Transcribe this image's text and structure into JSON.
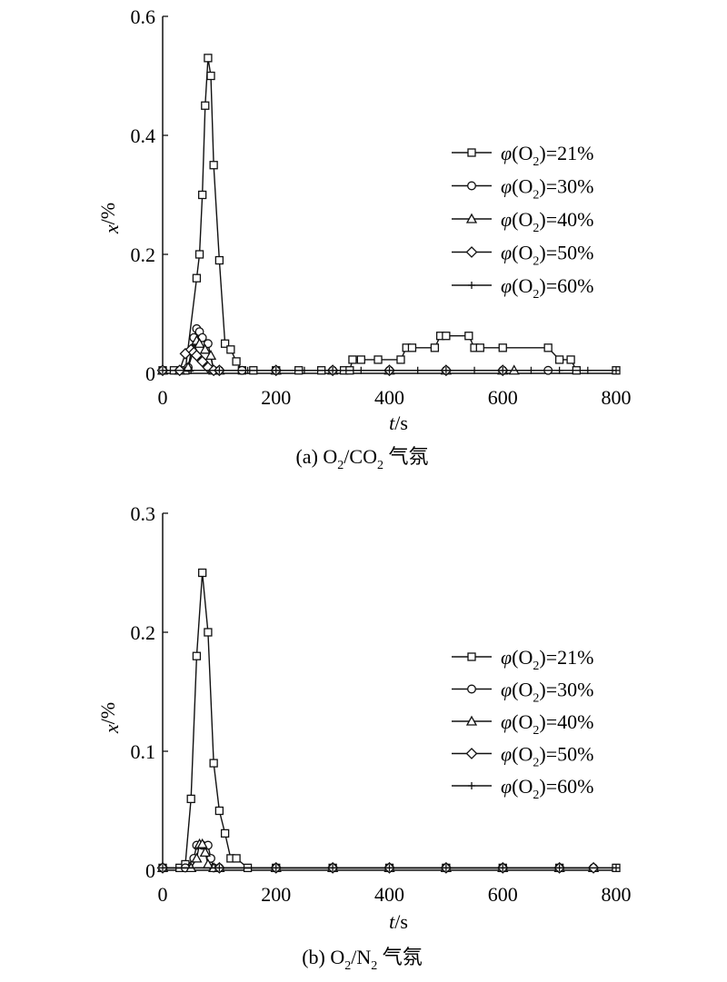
{
  "figure": {
    "panels": [
      {
        "caption_prefix": "(a) O",
        "caption_sub1": "2",
        "caption_mid": "/CO",
        "caption_sub2": "2",
        "caption_suffix": " 气氛"
      },
      {
        "caption_prefix": "(b) O",
        "caption_sub1": "2",
        "caption_mid": "/N",
        "caption_sub2": "2",
        "caption_suffix": " 气氛"
      }
    ]
  },
  "chart_data": [
    {
      "type": "line",
      "xlabel_italic": "t",
      "xlabel_rest": "/s",
      "ylabel_italic": "x",
      "ylabel_rest": "/%",
      "xlim": [
        0,
        800
      ],
      "ylim": [
        0,
        0.6
      ],
      "xticks": [
        "0",
        "200",
        "400",
        "600",
        "800"
      ],
      "yticks": [
        "0",
        "0.2",
        "0.4",
        "0.6"
      ],
      "legend_position": "right",
      "series": [
        {
          "name": "φ(O2)=21%",
          "legend_pre": "φ(O",
          "legend_sub": "2",
          "legend_post": ")=21%",
          "marker": "square",
          "x": [
            0,
            20,
            40,
            60,
            65,
            70,
            75,
            80,
            85,
            90,
            100,
            110,
            120,
            130,
            140,
            160,
            200,
            240,
            280,
            320,
            330,
            335,
            350,
            380,
            420,
            430,
            440,
            480,
            490,
            500,
            540,
            550,
            560,
            600,
            680,
            700,
            720,
            730,
            800
          ],
          "y": [
            0.005,
            0.005,
            0.005,
            0.16,
            0.2,
            0.3,
            0.45,
            0.53,
            0.5,
            0.35,
            0.19,
            0.05,
            0.04,
            0.02,
            0.005,
            0.005,
            0.005,
            0.005,
            0.005,
            0.005,
            0.005,
            0.023,
            0.023,
            0.023,
            0.023,
            0.043,
            0.043,
            0.043,
            0.063,
            0.063,
            0.063,
            0.043,
            0.043,
            0.043,
            0.043,
            0.023,
            0.023,
            0.005,
            0.005
          ]
        },
        {
          "name": "φ(O2)=30%",
          "legend_pre": "φ(O",
          "legend_sub": "2",
          "legend_post": ")=30%",
          "marker": "circle",
          "x": [
            0,
            30,
            45,
            55,
            60,
            65,
            70,
            80,
            90,
            100,
            140,
            200,
            300,
            400,
            500,
            600,
            680
          ],
          "y": [
            0.005,
            0.005,
            0.01,
            0.06,
            0.075,
            0.07,
            0.06,
            0.05,
            0.005,
            0.005,
            0.005,
            0.005,
            0.005,
            0.005,
            0.005,
            0.005,
            0.005
          ]
        },
        {
          "name": "φ(O2)=40%",
          "legend_pre": "φ(O",
          "legend_sub": "2",
          "legend_post": ")=40%",
          "marker": "triangle",
          "x": [
            0,
            30,
            45,
            55,
            60,
            65,
            75,
            85,
            90,
            100,
            200,
            300,
            400,
            500,
            600,
            620
          ],
          "y": [
            0.005,
            0.005,
            0.01,
            0.04,
            0.055,
            0.05,
            0.04,
            0.03,
            0.005,
            0.005,
            0.005,
            0.005,
            0.005,
            0.005,
            0.005,
            0.005
          ]
        },
        {
          "name": "φ(O2)=50%",
          "legend_pre": "φ(O",
          "legend_sub": "2",
          "legend_post": ")=50%",
          "marker": "diamond",
          "x": [
            0,
            30,
            40,
            50,
            55,
            60,
            70,
            80,
            90,
            100,
            200,
            300,
            400,
            500,
            600
          ],
          "y": [
            0.005,
            0.005,
            0.033,
            0.04,
            0.035,
            0.03,
            0.02,
            0.01,
            0.005,
            0.005,
            0.005,
            0.005,
            0.005,
            0.005,
            0.005
          ]
        },
        {
          "name": "φ(O2)=60%",
          "legend_pre": "φ(O",
          "legend_sub": "2",
          "legend_post": ")=60%",
          "marker": "plus",
          "x": [
            0,
            50,
            100,
            150,
            200,
            250,
            300,
            350,
            400,
            450,
            500,
            550,
            600,
            650,
            700,
            750,
            800
          ],
          "y": [
            0.005,
            0.005,
            0.005,
            0.005,
            0.005,
            0.005,
            0.005,
            0.005,
            0.005,
            0.005,
            0.005,
            0.005,
            0.005,
            0.005,
            0.005,
            0.005,
            0.005
          ]
        }
      ]
    },
    {
      "type": "line",
      "xlabel_italic": "t",
      "xlabel_rest": "/s",
      "ylabel_italic": "x",
      "ylabel_rest": "/%",
      "xlim": [
        0,
        800
      ],
      "ylim": [
        0,
        0.3
      ],
      "xticks": [
        "0",
        "200",
        "400",
        "600",
        "800"
      ],
      "yticks": [
        "0",
        "0.1",
        "0.2",
        "0.3"
      ],
      "legend_position": "right",
      "series": [
        {
          "name": "φ(O2)=21%",
          "legend_pre": "φ(O",
          "legend_sub": "2",
          "legend_post": ")=21%",
          "marker": "square",
          "x": [
            0,
            30,
            40,
            50,
            60,
            70,
            80,
            90,
            100,
            110,
            120,
            130,
            150,
            200,
            300,
            400,
            500,
            600,
            700,
            800
          ],
          "y": [
            0.002,
            0.002,
            0.005,
            0.06,
            0.18,
            0.25,
            0.2,
            0.09,
            0.05,
            0.031,
            0.01,
            0.01,
            0.002,
            0.002,
            0.002,
            0.002,
            0.002,
            0.002,
            0.002,
            0.002
          ]
        },
        {
          "name": "φ(O2)=30%",
          "legend_pre": "φ(O",
          "legend_sub": "2",
          "legend_post": ")=30%",
          "marker": "circle",
          "x": [
            0,
            40,
            55,
            60,
            70,
            80,
            85,
            90,
            100,
            200,
            300,
            400,
            500,
            600,
            700,
            760
          ],
          "y": [
            0.002,
            0.002,
            0.01,
            0.021,
            0.021,
            0.021,
            0.01,
            0.002,
            0.002,
            0.002,
            0.002,
            0.002,
            0.002,
            0.002,
            0.002,
            0.002
          ]
        },
        {
          "name": "φ(O2)=40%",
          "legend_pre": "φ(O",
          "legend_sub": "2",
          "legend_post": ")=40%",
          "marker": "triangle",
          "x": [
            0,
            50,
            60,
            65,
            70,
            75,
            80,
            90,
            100,
            200,
            300,
            400,
            500,
            600,
            700,
            760
          ],
          "y": [
            0.002,
            0.002,
            0.01,
            0.022,
            0.022,
            0.015,
            0.005,
            0.002,
            0.002,
            0.002,
            0.002,
            0.002,
            0.002,
            0.002,
            0.002,
            0.002
          ]
        },
        {
          "name": "φ(O2)=50%",
          "legend_pre": "φ(O",
          "legend_sub": "2",
          "legend_post": ")=50%",
          "marker": "diamond",
          "x": [
            0,
            100,
            200,
            300,
            400,
            500,
            600,
            700,
            760
          ],
          "y": [
            0.002,
            0.002,
            0.002,
            0.002,
            0.002,
            0.002,
            0.002,
            0.002,
            0.002
          ]
        },
        {
          "name": "φ(O2)=60%",
          "legend_pre": "φ(O",
          "legend_sub": "2",
          "legend_post": ")=60%",
          "marker": "plus",
          "x": [
            0,
            100,
            200,
            300,
            400,
            500,
            600,
            700,
            800
          ],
          "y": [
            0.002,
            0.002,
            0.002,
            0.002,
            0.002,
            0.002,
            0.002,
            0.002,
            0.002
          ]
        }
      ]
    }
  ]
}
